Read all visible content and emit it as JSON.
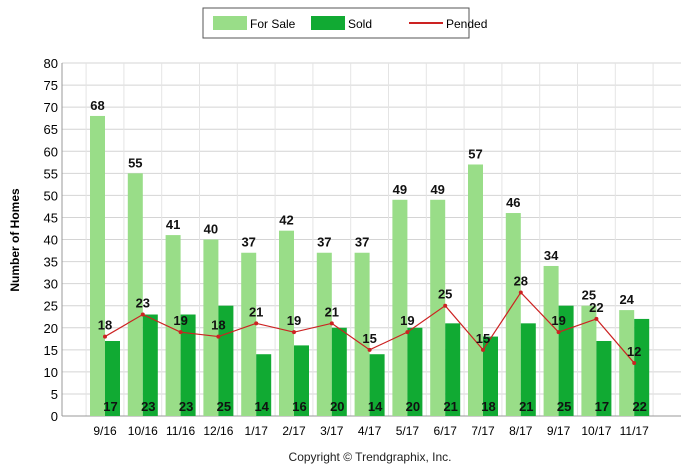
{
  "chart_data": {
    "type": "bar",
    "ylabel": "Number of Homes",
    "ylim": [
      0,
      80
    ],
    "ytick_step": 5,
    "grid": true,
    "legend_position": "top-center",
    "categories": [
      "9/16",
      "10/16",
      "11/16",
      "12/16",
      "1/17",
      "2/17",
      "3/17",
      "4/17",
      "5/17",
      "6/17",
      "7/17",
      "8/17",
      "9/17",
      "10/17",
      "11/17"
    ],
    "series": [
      {
        "name": "For Sale",
        "kind": "bar",
        "color": "#99dd88",
        "values": [
          68,
          55,
          41,
          40,
          37,
          42,
          37,
          37,
          49,
          49,
          57,
          46,
          34,
          25,
          24
        ]
      },
      {
        "name": "Sold",
        "kind": "bar",
        "color": "#11aa33",
        "values": [
          17,
          23,
          23,
          25,
          14,
          16,
          20,
          14,
          20,
          21,
          18,
          21,
          25,
          17,
          22
        ]
      },
      {
        "name": "Pended",
        "kind": "line",
        "color": "#cc2222",
        "values": [
          18,
          23,
          19,
          18,
          21,
          19,
          21,
          15,
          19,
          25,
          15,
          28,
          19,
          22,
          12
        ]
      }
    ]
  },
  "footer": {
    "copyright": "Copyright © Trendgraphix, Inc."
  }
}
